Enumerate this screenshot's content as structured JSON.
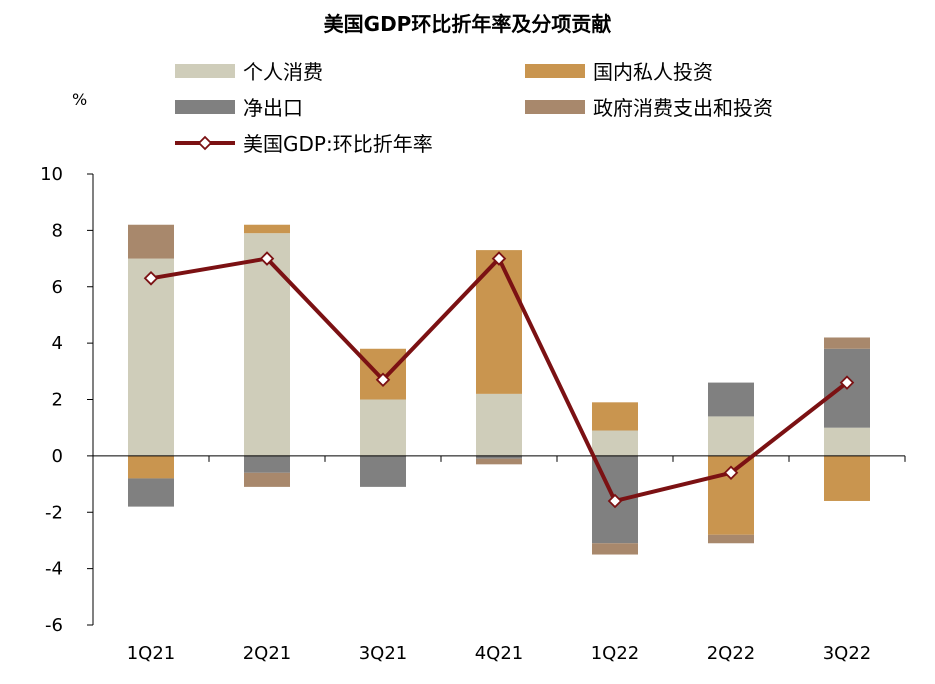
{
  "chart_data": {
    "type": "bar",
    "title": "美国GDP环比折年率及分项贡献",
    "ylabel": "%",
    "xlabel": "",
    "categories": [
      "1Q21",
      "2Q21",
      "3Q21",
      "4Q21",
      "1Q22",
      "2Q22",
      "3Q22"
    ],
    "ylim": [
      -6,
      10
    ],
    "yticks": [
      10,
      8,
      6,
      4,
      2,
      0,
      -2,
      -4,
      -6
    ],
    "grid": false,
    "legend_position": "top",
    "series": [
      {
        "name": "个人消费",
        "kind": "bar",
        "color": "#cfcdba",
        "values": [
          7.0,
          7.9,
          2.0,
          2.2,
          0.9,
          1.4,
          1.0
        ]
      },
      {
        "name": "国内私人投资",
        "kind": "bar",
        "color": "#c9954f",
        "values": [
          -0.8,
          0.3,
          1.8,
          5.1,
          1.0,
          -2.8,
          -1.6
        ]
      },
      {
        "name": "净出口",
        "kind": "bar",
        "color": "#808080",
        "values": [
          -1.0,
          -0.6,
          -1.1,
          -0.1,
          -3.1,
          1.2,
          2.8
        ]
      },
      {
        "name": "政府消费支出和投资",
        "kind": "bar",
        "color": "#a8886c",
        "values": [
          1.2,
          -0.5,
          0.0,
          -0.2,
          -0.4,
          -0.3,
          0.4
        ]
      },
      {
        "name": "美国GDP:环比折年率",
        "kind": "line",
        "color": "#7b1113",
        "values": [
          6.3,
          7.0,
          2.7,
          7.0,
          -1.6,
          -0.6,
          2.6
        ]
      }
    ]
  }
}
